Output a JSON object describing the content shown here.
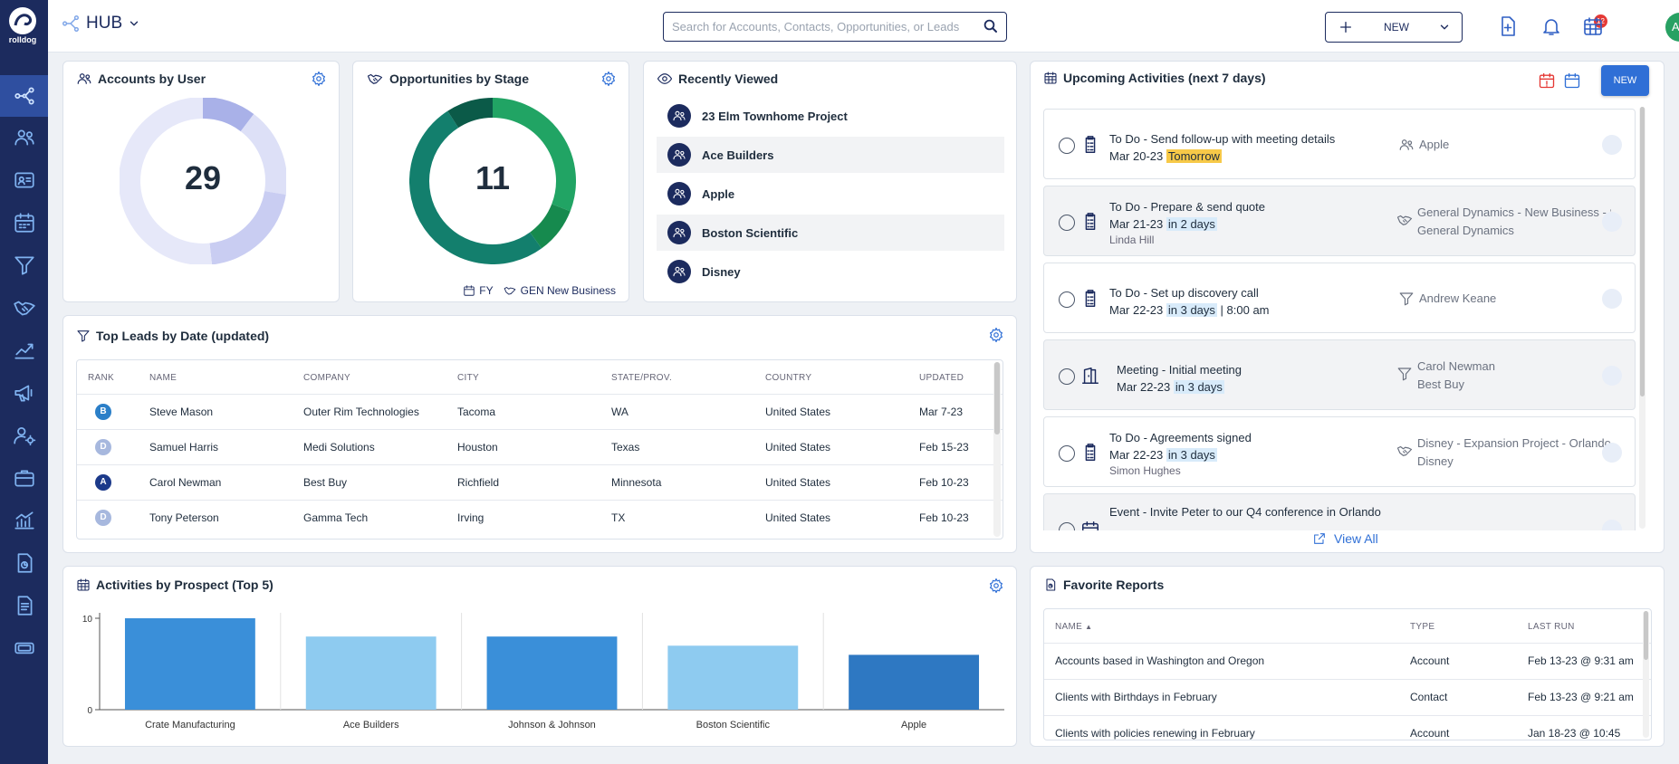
{
  "sidebar": {
    "logo_text": "rolldog",
    "items": [
      {
        "name": "hub-icon",
        "active": true
      },
      {
        "name": "accounts-icon"
      },
      {
        "name": "contacts-icon"
      },
      {
        "name": "calendar-icon"
      },
      {
        "name": "leads-filter-icon"
      },
      {
        "name": "opportunities-handshake-icon"
      },
      {
        "name": "forecast-icon"
      },
      {
        "name": "campaigns-megaphone-icon"
      },
      {
        "name": "user-settings-icon"
      },
      {
        "name": "briefcase-icon"
      },
      {
        "name": "analytics-icon"
      },
      {
        "name": "reports-icon"
      },
      {
        "name": "documents-icon"
      },
      {
        "name": "tickets-icon"
      }
    ]
  },
  "header": {
    "hub_label": "HUB",
    "search_placeholder": "Search for Accounts, Contacts, Opportunities, or Leads",
    "new_label": "NEW",
    "notification_count": "12",
    "avatar_initials": "AD"
  },
  "accounts_by_user": {
    "title": "Accounts by User",
    "total": "29",
    "segments": [
      {
        "value": 3,
        "color": "#a9b1e8"
      },
      {
        "value": 5,
        "color": "#dde0f7"
      },
      {
        "value": 6,
        "color": "#c9cdf2"
      },
      {
        "value": 15,
        "color": "#e6e8f9"
      }
    ]
  },
  "opportunities_by_stage": {
    "title": "Opportunities by Stage",
    "total": "11",
    "segments": [
      {
        "value": 3.4,
        "color": "#21a464"
      },
      {
        "value": 1.0,
        "color": "#168a4e"
      },
      {
        "value": 5.6,
        "color": "#137f6d"
      },
      {
        "value": 1.0,
        "color": "#0b5a48"
      }
    ],
    "filter_period": "FY",
    "filter_pipeline": "GEN New Business"
  },
  "recently_viewed": {
    "title": "Recently Viewed",
    "items": [
      "23 Elm Townhome Project",
      "Ace Builders",
      "Apple",
      "Boston Scientific",
      "Disney"
    ]
  },
  "top_leads": {
    "title": "Top Leads by Date (updated)",
    "columns": [
      "RANK",
      "NAME",
      "COMPANY",
      "CITY",
      "STATE/PROV.",
      "COUNTRY",
      "UPDATED"
    ],
    "rows": [
      {
        "rank": "B",
        "rank_color": "#2b7fc8",
        "name": "Steve Mason",
        "company": "Outer Rim Technologies",
        "city": "Tacoma",
        "state": "WA",
        "country": "United States",
        "updated": "Mar 7-23"
      },
      {
        "rank": "D",
        "rank_color": "#a7b8de",
        "name": "Samuel Harris",
        "company": "Medi Solutions",
        "city": "Houston",
        "state": "Texas",
        "country": "United States",
        "updated": "Feb 15-23"
      },
      {
        "rank": "A",
        "rank_color": "#1c3a8a",
        "name": "Carol Newman",
        "company": "Best Buy",
        "city": "Richfield",
        "state": "Minnesota",
        "country": "United States",
        "updated": "Feb 10-23"
      },
      {
        "rank": "D",
        "rank_color": "#a7b8de",
        "name": "Tony Peterson",
        "company": "Gamma Tech",
        "city": "Irving",
        "state": "TX",
        "country": "United States",
        "updated": "Feb 10-23"
      }
    ]
  },
  "upcoming": {
    "title": "Upcoming Activities (next 7 days)",
    "new_label": "NEW",
    "view_all": "View All",
    "items": [
      {
        "title": "To Do - Send follow-up with meeting details",
        "date": "Mar 20-23",
        "rel": "Tomorrow",
        "rel_style": "yellow",
        "extra": "",
        "sub": "",
        "related1": "Apple",
        "related2": "",
        "icon": "todo-clipboard-icon",
        "rel_icon": "account-icon"
      },
      {
        "title": "To Do - Prepare & send quote",
        "date": "Mar 21-23",
        "rel": "in 2 days",
        "rel_style": "blue",
        "extra": "",
        "sub": "Linda Hill",
        "related1": "General Dynamics - New Business - S",
        "related2": "General Dynamics",
        "icon": "todo-clipboard-icon",
        "rel_icon": "opportunity-handshake-icon"
      },
      {
        "title": "To Do - Set up discovery call",
        "date": "Mar 22-23",
        "rel": "in 3 days",
        "rel_style": "blue",
        "extra": "| 8:00 am",
        "sub": "",
        "related1": "Andrew Keane",
        "related2": "",
        "icon": "todo-clipboard-icon",
        "rel_icon": "lead-filter-icon"
      },
      {
        "title": "Meeting - Initial meeting",
        "date": "Mar 22-23",
        "rel": "in 3 days",
        "rel_style": "blue",
        "extra": "",
        "sub": "",
        "related1": "Carol Newman",
        "related2": "Best Buy",
        "icon": "meeting-door-icon",
        "rel_icon": "lead-filter-icon"
      },
      {
        "title": "To Do - Agreements signed",
        "date": "Mar 22-23",
        "rel": "in 3 days",
        "rel_style": "blue",
        "extra": "",
        "sub": "Simon Hughes",
        "related1": "Disney - Expansion Project - Orlando",
        "related2": "Disney",
        "icon": "todo-clipboard-icon",
        "rel_icon": "opportunity-handshake-icon"
      },
      {
        "title": "Event - Invite Peter to our Q4 conference in Orlando",
        "date": "",
        "rel": "",
        "rel_style": "blue",
        "extra": "",
        "sub": "",
        "related1": "",
        "related2": "",
        "icon": "event-calendar-icon",
        "rel_icon": "account-icon"
      }
    ]
  },
  "activities_by_prospect": {
    "title": "Activities by Prospect (Top 5)"
  },
  "chart_data": {
    "type": "bar",
    "title": "Activities by Prospect (Top 5)",
    "categories": [
      "Crate Manufacturing",
      "Ace Builders",
      "Johnson & Johnson",
      "Boston Scientific",
      "Apple"
    ],
    "values": [
      10,
      8,
      8,
      7,
      6
    ],
    "colors": [
      "#3a8fd9",
      "#8ecbf0",
      "#3a8fd9",
      "#8ecbf0",
      "#2e78c2"
    ],
    "ylim": [
      0,
      10
    ],
    "yticks": [
      "0",
      "10"
    ],
    "grid": false
  },
  "favorite_reports": {
    "title": "Favorite Reports",
    "columns": [
      "NAME",
      "TYPE",
      "LAST RUN"
    ],
    "rows": [
      {
        "name": "Accounts based in Washington and Oregon",
        "type": "Account",
        "last_run": "Feb 13-23 @ 9:31 am"
      },
      {
        "name": "Clients with Birthdays in February",
        "type": "Contact",
        "last_run": "Feb 13-23 @ 9:21 am"
      },
      {
        "name": "Clients with policies renewing in February",
        "type": "Account",
        "last_run": "Jan 18-23 @ 10:45"
      }
    ]
  }
}
